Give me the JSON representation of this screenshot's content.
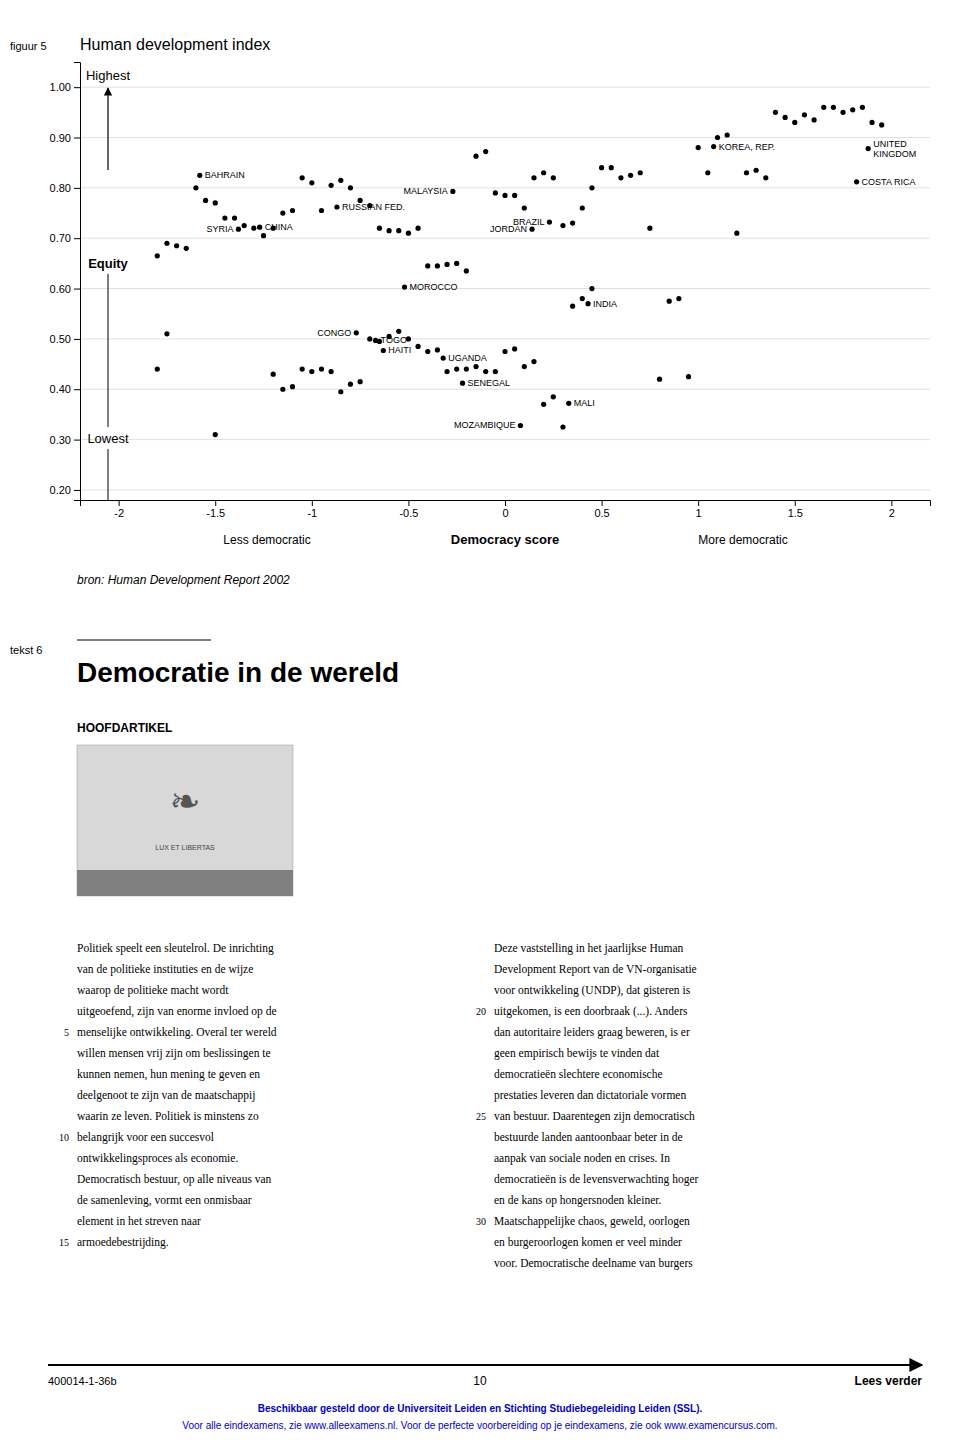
{
  "chart_data": {
    "type": "scatter",
    "title": "Human development index",
    "xlabel": "Democracy score",
    "x_end_labels": [
      "Less democratic",
      "More democratic"
    ],
    "y_scale_labels": [
      "Highest",
      "Equity",
      "Lowest"
    ],
    "color": "black",
    "grid": "y",
    "xlim": [
      -2.2,
      2.2
    ],
    "ylim": [
      0.18,
      1.05
    ],
    "xticks": [
      -2.0,
      -1.5,
      -1.0,
      -0.5,
      0,
      0.5,
      1.0,
      1.5,
      2.0
    ],
    "yticks": [
      {
        "value": 0.2,
        "label": "0.20"
      },
      {
        "value": 0.3,
        "label": "0.30"
      },
      {
        "value": 0.4,
        "label": "0.40"
      },
      {
        "value": 0.5,
        "label": "0.50"
      },
      {
        "value": 0.6,
        "label": "0.60"
      },
      {
        "value": 0.7,
        "label": "0.70"
      },
      {
        "value": 0.8,
        "label": "0.80"
      },
      {
        "value": 0.9,
        "label": "0.90"
      },
      {
        "value": 1.0,
        "label": "1.00"
      }
    ],
    "x": [
      -1.8,
      -1.75,
      -1.7,
      -1.65,
      -1.6,
      -1.55,
      -1.5,
      -1.45,
      -1.4,
      -1.35,
      -1.3,
      -1.25,
      -1.2,
      -1.15,
      -1.1,
      -1.05,
      -1.0,
      -0.95,
      -0.9,
      -0.85,
      -0.8,
      -0.75,
      -0.7,
      -0.65,
      -0.6,
      -0.55,
      -0.5,
      -0.45,
      -0.4,
      -0.35,
      -0.3,
      -0.25,
      -0.2,
      -0.15,
      -0.1,
      -0.05,
      0.0,
      0.05,
      0.1,
      0.15,
      0.2,
      0.25,
      0.3,
      0.35,
      0.4,
      0.45,
      0.5,
      0.55,
      0.6,
      0.65,
      0.7,
      0.75,
      0.8,
      0.85,
      0.9,
      0.95,
      1.0,
      1.05,
      1.1,
      1.15,
      1.2,
      1.25,
      1.3,
      1.35,
      1.4,
      1.45,
      1.5,
      1.55,
      1.6,
      1.65,
      1.7,
      1.75,
      1.8,
      1.85,
      1.9,
      1.95,
      -1.5,
      -1.2,
      -1.15,
      -1.1,
      -1.05,
      -1.0,
      -0.95,
      -0.9,
      -0.85,
      -0.8,
      -0.75,
      -0.7,
      -0.65,
      -0.6,
      -0.55,
      -0.5,
      -0.45,
      -0.4,
      -0.35,
      -0.3,
      -0.25,
      -0.2,
      -0.15,
      -0.1,
      -0.05,
      0.0,
      0.05,
      0.1,
      0.15,
      0.2,
      0.25,
      0.3,
      0.35,
      0.4,
      0.45,
      -1.8,
      -1.75
    ],
    "values": [
      0.665,
      0.69,
      0.685,
      0.68,
      0.8,
      0.775,
      0.77,
      0.74,
      0.74,
      0.725,
      0.72,
      0.705,
      0.72,
      0.75,
      0.755,
      0.82,
      0.81,
      0.755,
      0.805,
      0.815,
      0.8,
      0.775,
      0.765,
      0.72,
      0.715,
      0.715,
      0.71,
      0.72,
      0.645,
      0.645,
      0.648,
      0.65,
      0.635,
      0.863,
      0.872,
      0.79,
      0.785,
      0.785,
      0.76,
      0.82,
      0.83,
      0.82,
      0.725,
      0.73,
      0.76,
      0.8,
      0.84,
      0.84,
      0.82,
      0.825,
      0.83,
      0.72,
      0.42,
      0.575,
      0.58,
      0.425,
      0.88,
      0.83,
      0.9,
      0.905,
      0.71,
      0.83,
      0.835,
      0.82,
      0.95,
      0.94,
      0.93,
      0.945,
      0.935,
      0.96,
      0.96,
      0.95,
      0.955,
      0.96,
      0.93,
      0.925,
      0.31,
      0.43,
      0.4,
      0.405,
      0.44,
      0.435,
      0.44,
      0.435,
      0.395,
      0.41,
      0.415,
      0.5,
      0.495,
      0.505,
      0.515,
      0.5,
      0.485,
      0.475,
      0.478,
      0.435,
      0.44,
      0.44,
      0.445,
      0.435,
      0.435,
      0.475,
      0.48,
      0.445,
      0.455,
      0.37,
      0.385,
      0.325,
      0.565,
      0.58,
      0.6,
      0.44,
      0.51
    ],
    "labeled_points": [
      {
        "x": -1.58,
        "y": 0.825,
        "label": "BAHRAIN"
      },
      {
        "x": -1.38,
        "y": 0.718,
        "label": "SYRIA"
      },
      {
        "x": -1.27,
        "y": 0.722,
        "label": "CHINA"
      },
      {
        "x": -0.87,
        "y": 0.762,
        "label": "RUSSIAN FED."
      },
      {
        "x": -0.27,
        "y": 0.793,
        "label": "MALAYSIA"
      },
      {
        "x": 0.23,
        "y": 0.732,
        "label": "BRAZIL"
      },
      {
        "x": 0.14,
        "y": 0.718,
        "label": "JORDAN"
      },
      {
        "x": 1.08,
        "y": 0.882,
        "label": "KOREA, REP."
      },
      {
        "x": 1.88,
        "y": 0.878,
        "label": "UNITED\nKINGDOM"
      },
      {
        "x": 1.82,
        "y": 0.812,
        "label": "COSTA RICA"
      },
      {
        "x": -0.52,
        "y": 0.603,
        "label": "MOROCCO"
      },
      {
        "x": 0.43,
        "y": 0.57,
        "label": "INDIA"
      },
      {
        "x": -0.77,
        "y": 0.512,
        "label": "CONGO"
      },
      {
        "x": -0.67,
        "y": 0.497,
        "label": "TOGO"
      },
      {
        "x": -0.63,
        "y": 0.477,
        "label": "HAITI"
      },
      {
        "x": -0.32,
        "y": 0.462,
        "label": "UGANDA"
      },
      {
        "x": -0.22,
        "y": 0.412,
        "label": "SENEGAL"
      },
      {
        "x": 0.33,
        "y": 0.372,
        "label": "MALI"
      },
      {
        "x": 0.08,
        "y": 0.328,
        "label": "MOZAMBIQUE"
      }
    ]
  },
  "page": {
    "figure_label": "figuur 5",
    "source": "bron: Human Development Report 2002",
    "text_label": "tekst 6",
    "heading": "Democratie in de wereld",
    "section": "HOOFDARTIKEL",
    "emblem": [
      "❧",
      "LUX ET LIBERTAS"
    ],
    "body_left": {
      "lines": [
        "Politiek speelt een sleutelrol. De inrichting",
        "van de politieke instituties en de wijze",
        "waarop de politieke macht wordt",
        "uitgeoefend, zijn van enorme invloed op de",
        "menselijke ontwikkeling. Overal ter wereld",
        "willen mensen vrij zijn om beslissingen te",
        "kunnen nemen, hun mening te geven en",
        "deelgenoot te zijn van de maatschappij",
        "waarin ze leven. Politiek is minstens zo",
        "belangrijk voor een succesvol",
        "ontwikkelingsproces als economie.",
        "Democratisch bestuur, op alle niveaus van",
        "de samenleving, vormt een onmisbaar",
        "element in het streven naar",
        "armoedebestrijding."
      ],
      "line_numbers": {
        "4": "5",
        "9": "10",
        "14": "15"
      }
    },
    "body_right": {
      "lines": [
        "Deze vaststelling in het jaarlijkse Human",
        "Development Report van de VN-organisatie",
        "voor ontwikkeling (UNDP), dat gisteren is",
        "uitgekomen, is een doorbraak (...). Anders",
        "dan autoritaire leiders graag beweren, is er",
        "geen empirisch bewijs te vinden dat",
        "democratieën slechtere economische",
        "prestaties leveren dan dictatoriale vormen",
        "van bestuur. Daarentegen zijn democratisch",
        "bestuurde landen aantoonbaar beter in de",
        "aanpak van sociale noden en crises. In",
        "democratieën is de levensverwachting hoger",
        "en de kans op hongersnoden kleiner.",
        "Maatschappelijke chaos, geweld, oorlogen",
        "en burgeroorlogen komen er veel minder",
        "voor. Democratische deelname van burgers"
      ],
      "line_numbers": {
        "3": "20",
        "8": "25",
        "13": "30"
      }
    },
    "footer": {
      "left": "400014-1-36b",
      "center": "10",
      "right": "Lees verder"
    },
    "website": {
      "color": "#0000cc",
      "lines": [
        "Beschikbaar gesteld door de Universiteit Leiden en Stichting Studiebegeleiding Leiden (SSL).",
        "Voor alle eindexamens, zie www.alleexamens.nl. Voor de perfecte voorbereiding op je eindexamens, zie ook www.examencursus.com."
      ]
    }
  }
}
